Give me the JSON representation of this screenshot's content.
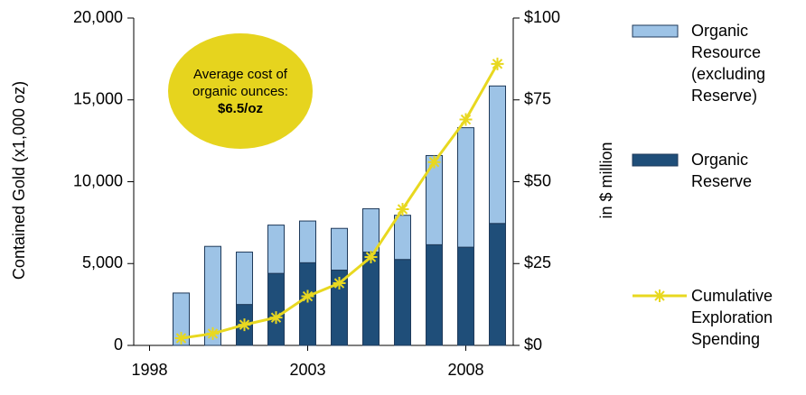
{
  "chart_data": {
    "type": "bar",
    "y_label": "Contained Gold (x1,000 oz)",
    "y2_label": "in $ million",
    "x": [
      1999,
      2000,
      2001,
      2002,
      2003,
      2004,
      2005,
      2006,
      2007,
      2008,
      2009
    ],
    "xlim": [
      1997.5,
      2009.5
    ],
    "xticks": [
      1998,
      2003,
      2008
    ],
    "ylim": [
      0,
      20000
    ],
    "yticks": [
      0,
      {
        "value": 5000,
        "label": "5,000"
      },
      {
        "value": 10000,
        "label": "10,000"
      },
      {
        "value": 15000,
        "label": "15,000"
      },
      {
        "value": 20000,
        "label": "20,000"
      }
    ],
    "y2lim": [
      0,
      100
    ],
    "y2ticks": [
      {
        "value": 0,
        "label": "$0"
      },
      {
        "value": 25,
        "label": "$25"
      },
      {
        "value": 50,
        "label": "$50"
      },
      {
        "value": 75,
        "label": "$75"
      },
      {
        "value": 100,
        "label": "$100"
      }
    ],
    "series": [
      {
        "name": "Organic Reserve",
        "type": "bar",
        "color": "#1f4e79",
        "values": [
          0,
          0,
          2500,
          4400,
          5050,
          4600,
          5700,
          5250,
          6150,
          6000,
          7450
        ]
      },
      {
        "name": "Organic Resource (excluding Reserve)",
        "type": "bar",
        "color": "#9dc3e6",
        "values": [
          3200,
          6050,
          3200,
          2950,
          2550,
          2550,
          2650,
          2700,
          5450,
          7300,
          8400
        ]
      },
      {
        "name": "Cumulative Exploration Spending",
        "type": "line",
        "axis": "y2",
        "color": "#e8d820",
        "values": [
          2.2,
          3.6,
          6.3,
          8.5,
          15,
          19,
          27,
          41.6,
          56,
          69,
          86
        ]
      }
    ],
    "annotation": {
      "text": "Average cost of organic ounces:",
      "value": "$6.5/oz",
      "color": "#e6d41e"
    }
  }
}
